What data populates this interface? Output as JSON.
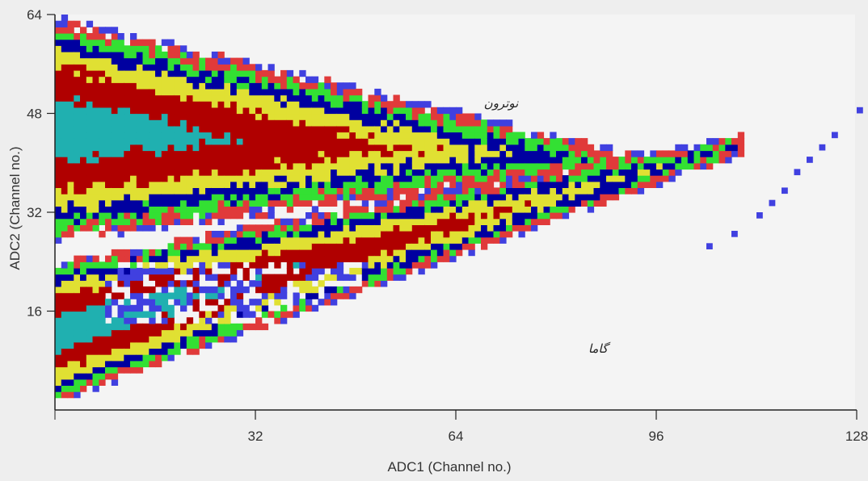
{
  "chart_data": {
    "type": "heatmap",
    "title": "",
    "xlabel": "ADC1 (Channel no.)",
    "ylabel": "ADC2 (Channel no.)",
    "xlim": [
      0,
      128
    ],
    "ylim": [
      0,
      64
    ],
    "x_ticks": [
      "32",
      "64",
      "96",
      "128"
    ],
    "y_ticks": [
      "16",
      "32",
      "48",
      "64"
    ],
    "grid": false,
    "color_levels": [
      "#4040e0",
      "#e03a3a",
      "#33e033",
      "#0000a0",
      "#e0e033",
      "#b00000",
      "#20b0b0"
    ],
    "annotations": [
      "نوترون",
      "گاما"
    ],
    "regions": [
      {
        "name": "neutron",
        "apex": [
          100,
          40
        ],
        "base_upper": 64,
        "base_lower": 27
      },
      {
        "name": "gamma",
        "apex": [
          128,
          48
        ],
        "base_upper": 24,
        "base_lower": 1
      }
    ]
  }
}
